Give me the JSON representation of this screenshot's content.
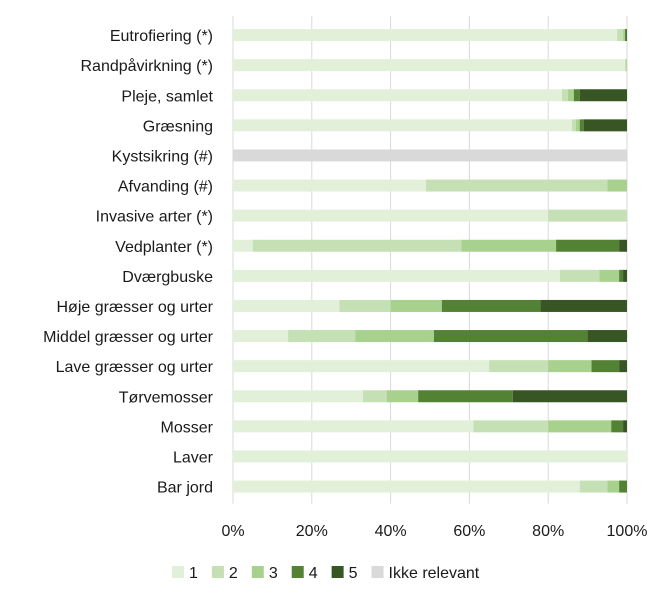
{
  "chart_data": {
    "type": "bar",
    "orientation": "horizontal",
    "stacked": true,
    "percent": true,
    "title": "",
    "xlabel": "",
    "ylabel": "",
    "xlim": [
      0,
      100
    ],
    "x_ticks": [
      "0%",
      "20%",
      "40%",
      "60%",
      "80%",
      "100%"
    ],
    "grid": "vertical",
    "legend_position": "bottom",
    "categories": [
      "Eutrofiering (*)",
      "Randpåvirkning (*)",
      "Pleje, samlet",
      "Græsning",
      "Kystsikring (#)",
      "Afvanding (#)",
      "Invasive arter (*)",
      "Vedplanter (*)",
      "Dværgbuske",
      "Høje græsser og urter",
      "Middel græsser og urter",
      "Lave græsser og urter",
      "Tørvemosser",
      "Mosser",
      "Laver",
      "Bar jord"
    ],
    "series": [
      {
        "name": "1",
        "color": "#e2f0d9",
        "values": [
          97.5,
          99.5,
          83.5,
          86,
          0,
          49,
          80,
          5,
          83,
          27,
          14,
          65,
          33,
          61,
          100,
          88
        ]
      },
      {
        "name": "2",
        "color": "#c5e0b4",
        "values": [
          1.5,
          0.3,
          1.5,
          1,
          0,
          46,
          20,
          53,
          10,
          13,
          17,
          15,
          6,
          19,
          0,
          7
        ]
      },
      {
        "name": "3",
        "color": "#a9d18e",
        "values": [
          0.5,
          0.2,
          1.5,
          1,
          0,
          5,
          0,
          24,
          5,
          13,
          20,
          11,
          8,
          16,
          0,
          3
        ]
      },
      {
        "name": "4",
        "color": "#548235",
        "values": [
          0.3,
          0,
          1.5,
          1,
          0,
          0,
          0,
          16,
          1,
          25,
          39,
          7,
          24,
          3,
          0,
          2
        ]
      },
      {
        "name": "5",
        "color": "#375623",
        "values": [
          0.2,
          0,
          12,
          11,
          0,
          0,
          0,
          2,
          1,
          22,
          10,
          2,
          29,
          1,
          0,
          0
        ]
      },
      {
        "name": "Ikke relevant",
        "color": "#d9d9d9",
        "values": [
          0,
          0,
          0,
          0,
          100,
          0,
          0,
          0,
          0,
          0,
          0,
          0,
          0,
          0,
          0,
          0
        ]
      }
    ]
  }
}
